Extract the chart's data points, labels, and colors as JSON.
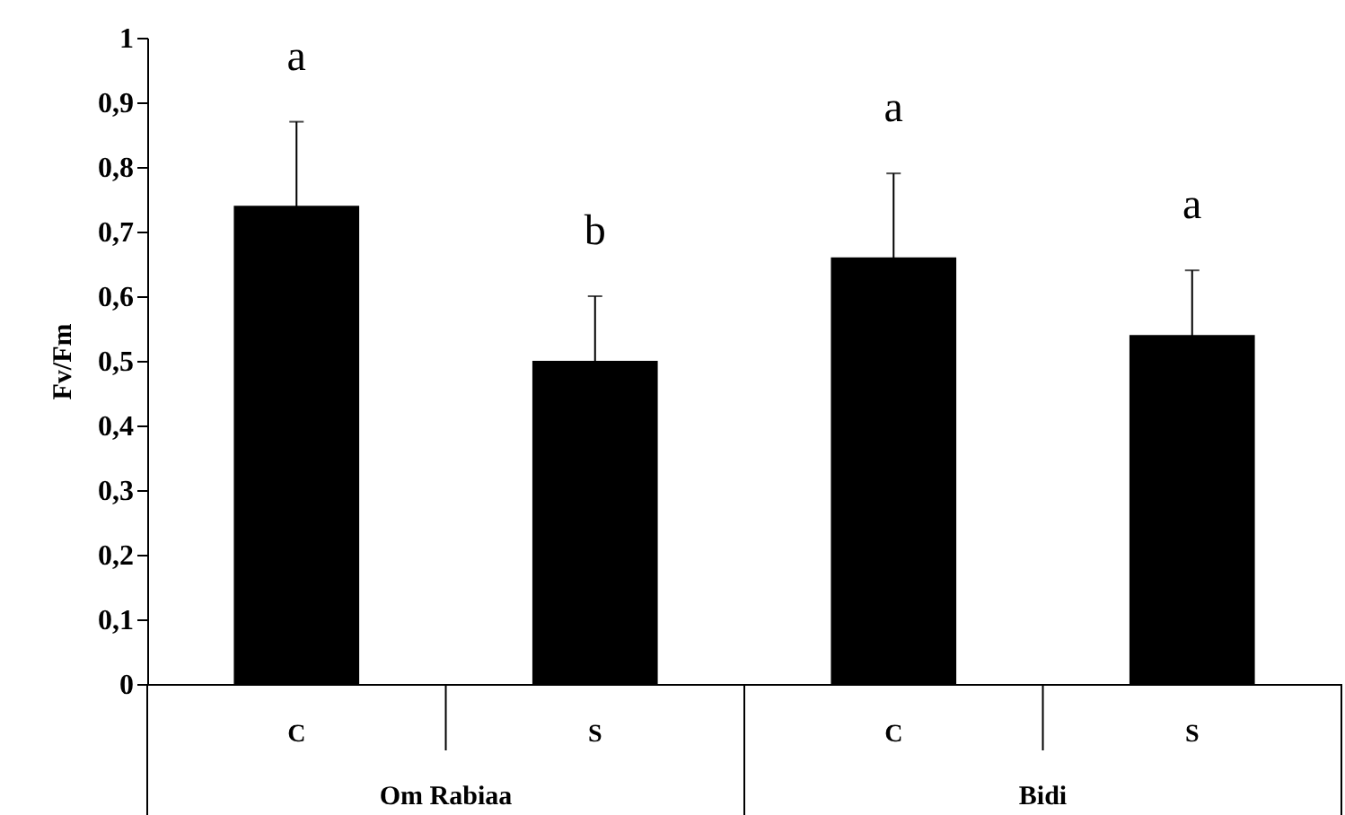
{
  "chart_data": {
    "type": "bar",
    "ylabel": "Fv/Fm",
    "categories": [
      "C",
      "S",
      "C",
      "S"
    ],
    "values": [
      0.74,
      0.5,
      0.66,
      0.54
    ],
    "errors": [
      0.13,
      0.1,
      0.13,
      0.1
    ],
    "value_labels": [
      "a",
      "b",
      "a",
      "a"
    ],
    "color": "#000000",
    "annotations": [
      "Om Rabiaa",
      "Bidi"
    ],
    "ylim": [
      0,
      1
    ],
    "yticks": [
      0,
      {
        "value": 0.1,
        "label": "0,1"
      },
      {
        "value": 0.2,
        "label": "0,2"
      },
      {
        "value": 0.3,
        "label": "0,3"
      },
      {
        "value": 0.4,
        "label": "0,4"
      },
      {
        "value": 0.5,
        "label": "0,5"
      },
      {
        "value": 0.6,
        "label": "0,6"
      },
      {
        "value": 0.7,
        "label": "0,7"
      },
      {
        "value": 0.8,
        "label": "0,8"
      },
      {
        "value": 0.9,
        "label": "0,9"
      },
      1
    ],
    "grid": false
  }
}
